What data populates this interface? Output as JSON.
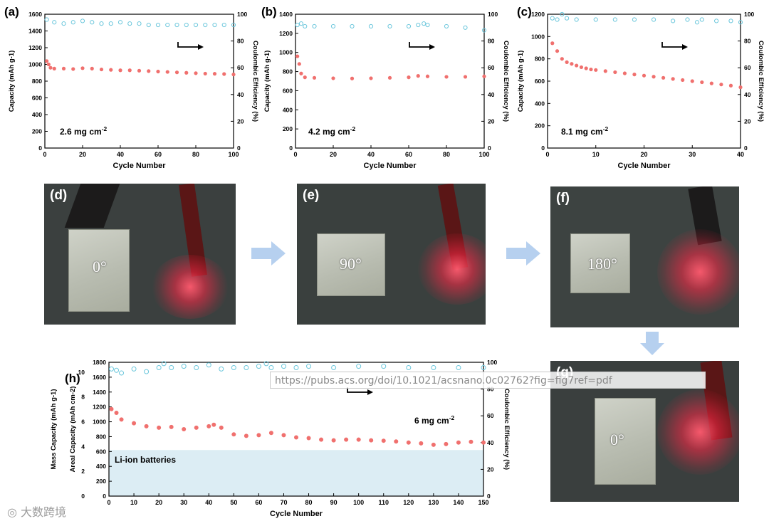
{
  "panels": {
    "a": {
      "label": "(a)",
      "loading": "2.6 mg cm",
      "sup": "-2"
    },
    "b": {
      "label": "(b)",
      "loading": "4.2 mg cm",
      "sup": "-2"
    },
    "c": {
      "label": "(c)",
      "loading": "8.1 mg cm",
      "sup": "-2"
    },
    "h": {
      "label": "(h)",
      "loading": "6 mg cm",
      "sup": "-2",
      "band_label": "Li-ion batteries"
    }
  },
  "photos": {
    "d": {
      "label": "(d)",
      "angle": "0°"
    },
    "e": {
      "label": "(e)",
      "angle": "90°"
    },
    "f": {
      "label": "(f)",
      "angle": "180°"
    },
    "g": {
      "label": "(g)",
      "angle": "0°"
    }
  },
  "url_overlay": "https://pubs.acs.org/doi/10.1021/acsnano.0c02762?fig=fig7ref=pdf",
  "watermark": "大数跨境",
  "colors": {
    "capacity": "#f0706e",
    "ce": "#6cc7dc",
    "band": "#dcedf4",
    "arrow": "#8fb8e6"
  },
  "chart_data": [
    {
      "type": "scatter",
      "id": "a",
      "xlabel": "Cycle Number",
      "ylabel": "Capacity (mAh g-1)",
      "y2label": "Coulombic Efficiency (%)",
      "xlim": [
        0,
        100
      ],
      "ylim": [
        0,
        1600
      ],
      "y2lim": [
        0,
        100
      ],
      "xticks": [
        0,
        20,
        40,
        60,
        80,
        100
      ],
      "yticks": [
        0,
        200,
        400,
        600,
        800,
        1000,
        1200,
        1400,
        1600
      ],
      "y2ticks": [
        0,
        20,
        40,
        60,
        80,
        100
      ],
      "series": [
        {
          "axis": "left",
          "marker": "filled",
          "points": [
            [
              1,
              1040
            ],
            [
              2,
              1000
            ],
            [
              3,
              960
            ],
            [
              5,
              950
            ],
            [
              10,
              950
            ],
            [
              15,
              945
            ],
            [
              20,
              955
            ],
            [
              25,
              950
            ],
            [
              30,
              940
            ],
            [
              35,
              935
            ],
            [
              40,
              930
            ],
            [
              45,
              930
            ],
            [
              50,
              925
            ],
            [
              55,
              920
            ],
            [
              60,
              915
            ],
            [
              65,
              910
            ],
            [
              70,
              905
            ],
            [
              75,
              900
            ],
            [
              80,
              895
            ],
            [
              85,
              890
            ],
            [
              90,
              888
            ],
            [
              95,
              885
            ],
            [
              100,
              880
            ]
          ]
        },
        {
          "axis": "right",
          "marker": "open",
          "points": [
            [
              1,
              96
            ],
            [
              5,
              94
            ],
            [
              10,
              93
            ],
            [
              15,
              94
            ],
            [
              20,
              95
            ],
            [
              25,
              94
            ],
            [
              30,
              93
            ],
            [
              35,
              93
            ],
            [
              40,
              94
            ],
            [
              45,
              93
            ],
            [
              50,
              93
            ],
            [
              55,
              92
            ],
            [
              60,
              92
            ],
            [
              65,
              92
            ],
            [
              70,
              92
            ],
            [
              75,
              92
            ],
            [
              80,
              92
            ],
            [
              85,
              92
            ],
            [
              90,
              92
            ],
            [
              95,
              92
            ],
            [
              100,
              92
            ]
          ]
        }
      ]
    },
    {
      "type": "scatter",
      "id": "b",
      "xlabel": "Cycle Number",
      "ylabel": "Capacity (mAh g-1)",
      "y2label": "Coulombic Efficiency (%)",
      "xlim": [
        0,
        100
      ],
      "ylim": [
        0,
        1400
      ],
      "y2lim": [
        0,
        100
      ],
      "xticks": [
        0,
        20,
        40,
        60,
        80,
        100
      ],
      "yticks": [
        0,
        200,
        400,
        600,
        800,
        1000,
        1200,
        1400
      ],
      "y2ticks": [
        0,
        20,
        40,
        60,
        80,
        100
      ],
      "series": [
        {
          "axis": "left",
          "marker": "filled",
          "points": [
            [
              1,
              960
            ],
            [
              2,
              880
            ],
            [
              3,
              780
            ],
            [
              5,
              740
            ],
            [
              10,
              735
            ],
            [
              20,
              730
            ],
            [
              30,
              728
            ],
            [
              40,
              730
            ],
            [
              50,
              735
            ],
            [
              60,
              740
            ],
            [
              65,
              755
            ],
            [
              70,
              750
            ],
            [
              80,
              745
            ],
            [
              90,
              745
            ],
            [
              100,
              750
            ]
          ]
        },
        {
          "axis": "right",
          "marker": "open",
          "points": [
            [
              1,
              92
            ],
            [
              3,
              93
            ],
            [
              5,
              91
            ],
            [
              10,
              91
            ],
            [
              20,
              91
            ],
            [
              30,
              91
            ],
            [
              40,
              91
            ],
            [
              50,
              91
            ],
            [
              60,
              91
            ],
            [
              65,
              92
            ],
            [
              68,
              93
            ],
            [
              70,
              92
            ],
            [
              80,
              91
            ],
            [
              90,
              90
            ],
            [
              100,
              88
            ]
          ]
        }
      ]
    },
    {
      "type": "scatter",
      "id": "c",
      "xlabel": "Cycle Number",
      "ylabel": "Capacity (mAh g-1)",
      "y2label": "Coulombic Efficiency (%)",
      "xlim": [
        0,
        40
      ],
      "ylim": [
        0,
        1200
      ],
      "y2lim": [
        0,
        100
      ],
      "xticks": [
        0,
        10,
        20,
        30,
        40
      ],
      "yticks": [
        0,
        200,
        400,
        600,
        800,
        1000,
        1200
      ],
      "y2ticks": [
        0,
        20,
        40,
        60,
        80,
        100
      ],
      "series": [
        {
          "axis": "left",
          "marker": "filled",
          "points": [
            [
              1,
              940
            ],
            [
              2,
              870
            ],
            [
              3,
              800
            ],
            [
              4,
              770
            ],
            [
              5,
              755
            ],
            [
              6,
              740
            ],
            [
              7,
              725
            ],
            [
              8,
              715
            ],
            [
              9,
              705
            ],
            [
              10,
              700
            ],
            [
              12,
              690
            ],
            [
              14,
              680
            ],
            [
              16,
              670
            ],
            [
              18,
              660
            ],
            [
              20,
              650
            ],
            [
              22,
              640
            ],
            [
              24,
              630
            ],
            [
              26,
              620
            ],
            [
              28,
              610
            ],
            [
              30,
              600
            ],
            [
              32,
              590
            ],
            [
              34,
              580
            ],
            [
              36,
              570
            ],
            [
              38,
              560
            ],
            [
              40,
              545
            ]
          ]
        },
        {
          "axis": "right",
          "marker": "open",
          "points": [
            [
              1,
              97
            ],
            [
              2,
              96
            ],
            [
              3,
              100
            ],
            [
              4,
              97
            ],
            [
              6,
              96
            ],
            [
              10,
              96
            ],
            [
              14,
              96
            ],
            [
              18,
              96
            ],
            [
              22,
              96
            ],
            [
              26,
              95
            ],
            [
              29,
              96
            ],
            [
              31,
              94
            ],
            [
              32,
              96
            ],
            [
              35,
              95
            ],
            [
              38,
              95
            ],
            [
              40,
              94
            ]
          ]
        }
      ]
    },
    {
      "type": "scatter",
      "id": "h",
      "xlabel": "Cycle Number",
      "ylabel": "Mass Capacity (mAh g-1)",
      "ylabel2": "Areal Capacity (mAh cm-2)",
      "y2label": "Coulombic Efficiency (%)",
      "xlim": [
        0,
        150
      ],
      "ylim": [
        0,
        1800
      ],
      "y2lim": [
        0,
        100
      ],
      "areal_lim": [
        0,
        10.8
      ],
      "xticks": [
        0,
        10,
        20,
        30,
        40,
        50,
        60,
        70,
        80,
        90,
        100,
        110,
        120,
        130,
        140,
        150
      ],
      "yticks": [
        0,
        200,
        400,
        600,
        800,
        1000,
        1200,
        1400,
        1600,
        1800
      ],
      "areal_ticks": [
        0,
        2,
        4,
        6,
        8,
        10
      ],
      "y2ticks": [
        0,
        20,
        40,
        60,
        80,
        100
      ],
      "band_ylim": [
        0,
        620
      ],
      "series": [
        {
          "axis": "left",
          "marker": "filled",
          "points": [
            [
              1,
              1170
            ],
            [
              3,
              1120
            ],
            [
              5,
              1030
            ],
            [
              10,
              980
            ],
            [
              15,
              940
            ],
            [
              20,
              920
            ],
            [
              25,
              930
            ],
            [
              30,
              900
            ],
            [
              35,
              920
            ],
            [
              40,
              940
            ],
            [
              42,
              960
            ],
            [
              45,
              920
            ],
            [
              50,
              830
            ],
            [
              55,
              810
            ],
            [
              60,
              820
            ],
            [
              65,
              850
            ],
            [
              70,
              820
            ],
            [
              75,
              790
            ],
            [
              80,
              780
            ],
            [
              85,
              760
            ],
            [
              90,
              750
            ],
            [
              95,
              760
            ],
            [
              100,
              760
            ],
            [
              105,
              750
            ],
            [
              110,
              745
            ],
            [
              115,
              735
            ],
            [
              120,
              720
            ],
            [
              125,
              710
            ],
            [
              130,
              690
            ],
            [
              135,
              700
            ],
            [
              140,
              720
            ],
            [
              145,
              730
            ],
            [
              150,
              720
            ]
          ]
        },
        {
          "axis": "right",
          "marker": "open",
          "points": [
            [
              1,
              95
            ],
            [
              3,
              94
            ],
            [
              5,
              92
            ],
            [
              10,
              95
            ],
            [
              15,
              93
            ],
            [
              20,
              96
            ],
            [
              22,
              99
            ],
            [
              25,
              96
            ],
            [
              30,
              97
            ],
            [
              35,
              96
            ],
            [
              40,
              98
            ],
            [
              45,
              95
            ],
            [
              50,
              96
            ],
            [
              55,
              96
            ],
            [
              60,
              97
            ],
            [
              63,
              99
            ],
            [
              65,
              96
            ],
            [
              70,
              97
            ],
            [
              75,
              96
            ],
            [
              80,
              97
            ],
            [
              90,
              96
            ],
            [
              100,
              97
            ],
            [
              110,
              97
            ],
            [
              120,
              96
            ],
            [
              130,
              96
            ],
            [
              140,
              96
            ],
            [
              150,
              96
            ]
          ]
        }
      ]
    }
  ]
}
